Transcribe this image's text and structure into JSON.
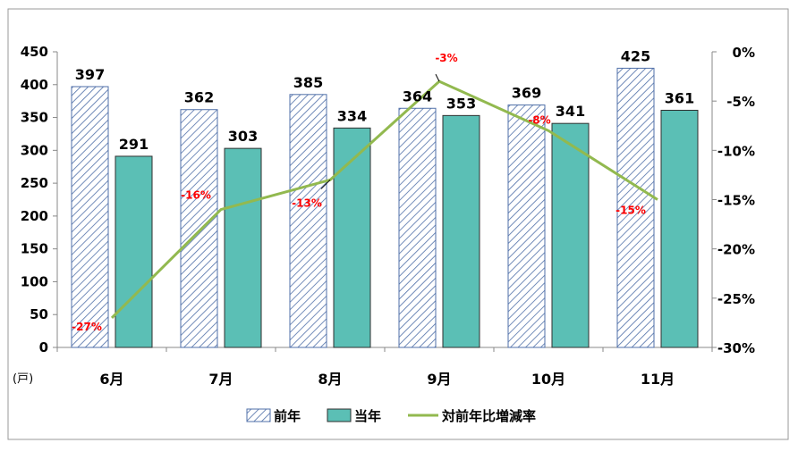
{
  "chart_data": {
    "type": "bar",
    "categories": [
      "6月",
      "7月",
      "8月",
      "9月",
      "10月",
      "11月"
    ],
    "series": [
      {
        "name": "前年",
        "type": "bar",
        "values": [
          397,
          362,
          385,
          364,
          369,
          425
        ],
        "style": "hatched",
        "color": "#4f6fa8"
      },
      {
        "name": "当年",
        "type": "bar",
        "values": [
          291,
          303,
          334,
          353,
          341,
          361
        ],
        "color": "#5bbfb5"
      },
      {
        "name": "対前年比増減率",
        "type": "line",
        "axis": "right",
        "values": [
          -27,
          -16,
          -13,
          -3,
          -8,
          -15
        ],
        "labels": [
          "-27%",
          "-16%",
          "-13%",
          "-3%",
          "-8%",
          "-15%"
        ],
        "color": "#92b94f"
      }
    ],
    "ylim": [
      0,
      450
    ],
    "yticks": [
      "0",
      "50",
      "100",
      "150",
      "200",
      "250",
      "300",
      "350",
      "400",
      "450"
    ],
    "y2lim": [
      -30,
      0
    ],
    "y2ticks": [
      "0%",
      "-5%",
      "-10%",
      "-15%",
      "-20%",
      "-25%",
      "-30%"
    ],
    "yunit": "(戸)",
    "grid": false,
    "legend": "bottom",
    "label_color": "#ff0000"
  }
}
